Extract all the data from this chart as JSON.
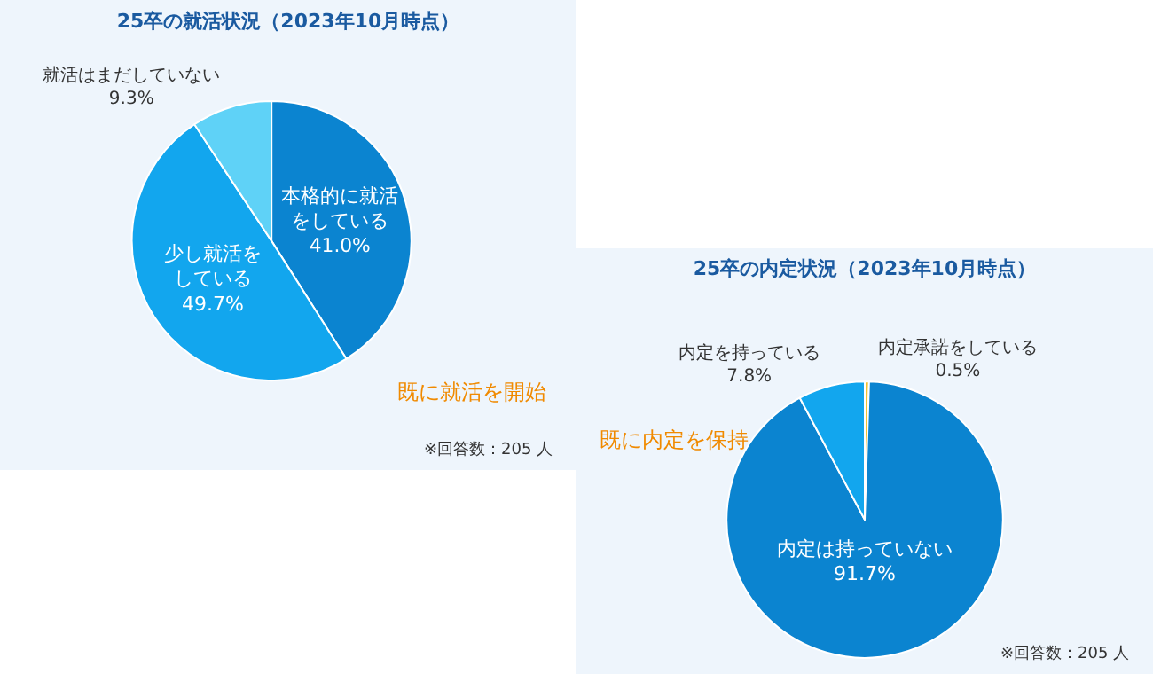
{
  "chart_data": [
    {
      "type": "pie",
      "title": "25卒の就活状況（2023年10月時点）",
      "categories": [
        "本格的に就活をしている",
        "少し就活をしている",
        "就活はまだしていない"
      ],
      "values": [
        41.0,
        49.7,
        9.3
      ],
      "value_labels": [
        "41.0%",
        "49.7%",
        "9.3%"
      ],
      "colors": [
        "#0b84d0",
        "#12a6ee",
        "#5fd2f7"
      ],
      "legend": false,
      "annotations": [
        "既に就活を開始",
        "※回答数：205 人"
      ]
    },
    {
      "type": "pie",
      "title": "25卒の内定状況（2023年10月時点）",
      "categories": [
        "内定承諾をしている",
        "内定は持っていない",
        "内定を持っている"
      ],
      "values": [
        0.5,
        91.7,
        7.8
      ],
      "value_labels": [
        "0.5%",
        "91.7%",
        "7.8%"
      ],
      "colors": [
        "#f2c230",
        "#0b84d0",
        "#12a6ee"
      ],
      "legend": false,
      "annotations": [
        "既に内定を保持",
        "※回答数：205 人"
      ]
    }
  ]
}
